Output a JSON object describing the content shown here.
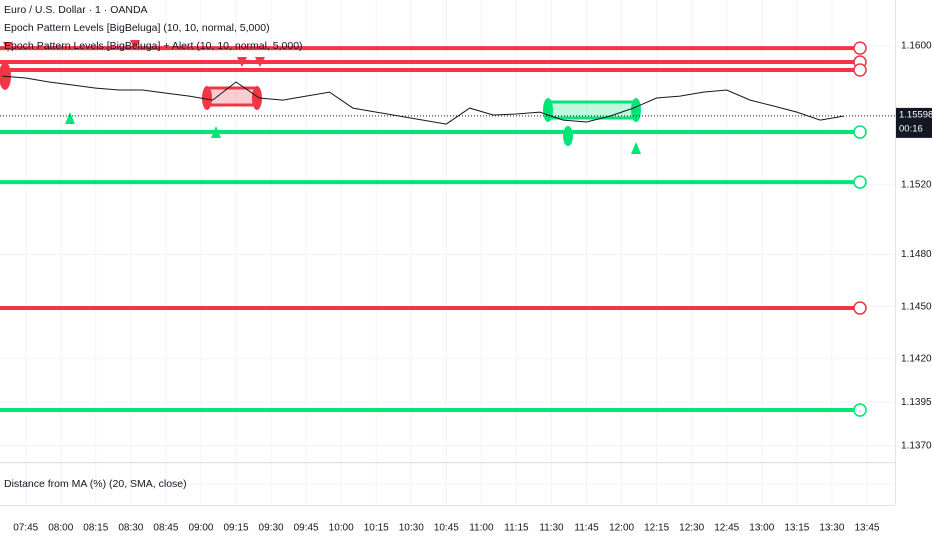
{
  "chart_data": {
    "type": "line",
    "title": "Euro / U.S. Dollar · 1 · OANDA",
    "indicators": [
      "Epoch Pattern Levels [BigBeluga] (10, 10, normal, 5,000)",
      "Epoch Pattern Levels [BigBeluga] + Alert (10, 10, normal, 5,000)"
    ],
    "lower_pane_title": "Distance from MA (%) (20, SMA, close)",
    "x": [
      "07:35",
      "07:45",
      "07:55",
      "08:05",
      "08:15",
      "08:25",
      "08:35",
      "08:45",
      "08:55",
      "09:05",
      "09:15",
      "09:25",
      "09:35",
      "09:45",
      "09:55",
      "10:05",
      "10:15",
      "10:25",
      "10:35",
      "10:45",
      "10:55",
      "11:05",
      "11:15",
      "11:25",
      "11:35",
      "11:45",
      "11:55",
      "12:05",
      "12:15",
      "12:25",
      "12:35",
      "12:45",
      "12:55",
      "13:05",
      "13:15",
      "13:25",
      "13:35"
    ],
    "series": [
      {
        "color": "#131722",
        "values": [
          1.15827,
          1.15816,
          1.15793,
          1.15776,
          1.15758,
          1.15747,
          1.15747,
          1.15729,
          1.15712,
          1.15689,
          1.15793,
          1.15701,
          1.15689,
          1.15712,
          1.15735,
          1.15643,
          1.1562,
          1.15597,
          1.15574,
          1.15551,
          1.15643,
          1.15603,
          1.15609,
          1.1562,
          1.15574,
          1.15563,
          1.15597,
          1.15643,
          1.15701,
          1.15712,
          1.15735,
          1.15747,
          1.15689,
          1.15655,
          1.1562,
          1.15574,
          1.15597
        ]
      }
    ],
    "levels": [
      {
        "value": 1.15988,
        "color": "#f23645"
      },
      {
        "value": 1.15908,
        "color": "#f23645"
      },
      {
        "value": 1.15862,
        "color": "#f23645"
      },
      {
        "value": 1.15505,
        "color": "#00e676"
      },
      {
        "value": 1.15217,
        "color": "#00e676"
      },
      {
        "value": 1.14492,
        "color": "#f23645"
      },
      {
        "value": 1.13905,
        "color": "#00e676"
      }
    ],
    "last_price": 1.15598,
    "countdown": "00:16",
    "xlim": [
      "07:34",
      "13:57"
    ],
    "xticks": [
      "07:45",
      "08:00",
      "08:15",
      "08:30",
      "08:45",
      "09:00",
      "09:15",
      "09:30",
      "09:45",
      "10:00",
      "10:15",
      "10:30",
      "10:45",
      "11:00",
      "11:15",
      "11:30",
      "11:45",
      "12:00",
      "12:15",
      "12:30",
      "12:45",
      "13:00",
      "13:15",
      "13:30",
      "13:45"
    ],
    "ylim": [
      1.13606,
      1.16265
    ],
    "yticks": [
      {
        "value": 1.16,
        "label": "1.16000"
      },
      {
        "value": 1.152,
        "label": "1.15200"
      },
      {
        "value": 1.148,
        "label": "1.14800"
      },
      {
        "value": 1.145,
        "label": "1.14500"
      },
      {
        "value": 1.142,
        "label": "1.14200"
      },
      {
        "value": 1.1395,
        "label": "1.13950"
      },
      {
        "value": 1.137,
        "label": "1.13700"
      }
    ],
    "grid": true
  }
}
